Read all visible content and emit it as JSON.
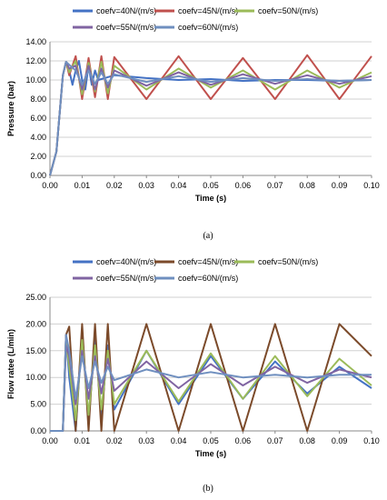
{
  "chart_data": [
    {
      "type": "line",
      "panel": "a",
      "caption": "(a)",
      "xlabel": "Time (s)",
      "ylabel": "Pressure (bar)",
      "xlim": [
        0,
        0.1
      ],
      "ylim": [
        0,
        14
      ],
      "x_ticks": [
        "0.00",
        "0.01",
        "0.02",
        "0.03",
        "0.04",
        "0.05",
        "0.06",
        "0.07",
        "0.08",
        "0.09",
        "0.10"
      ],
      "y_ticks": [
        "0.00",
        "2.00",
        "4.00",
        "6.00",
        "8.00",
        "10.00",
        "12.00",
        "14.00"
      ],
      "grid": "horizontal",
      "legend_position": "top",
      "series": [
        {
          "name": "coefv=40N/(m/s)",
          "color": "#4472C4",
          "x": [
            0,
            0.002,
            0.004,
            0.005,
            0.006,
            0.007,
            0.008,
            0.009,
            0.01,
            0.011,
            0.012,
            0.013,
            0.014,
            0.015,
            0.02,
            0.03,
            0.04,
            0.05,
            0.06,
            0.07,
            0.08,
            0.09,
            0.1
          ],
          "y": [
            0,
            2.5,
            10.5,
            11.9,
            11.0,
            9.5,
            11.0,
            12.0,
            10.0,
            9.0,
            11.5,
            9.5,
            11.0,
            10.0,
            10.5,
            10.2,
            10.0,
            10.1,
            9.9,
            10.0,
            10.0,
            9.9,
            10.0
          ]
        },
        {
          "name": "coefv=45N/(m/s)",
          "color": "#C0504D",
          "x": [
            0,
            0.002,
            0.004,
            0.005,
            0.006,
            0.008,
            0.01,
            0.012,
            0.014,
            0.016,
            0.018,
            0.02,
            0.03,
            0.04,
            0.05,
            0.06,
            0.07,
            0.08,
            0.09,
            0.1
          ],
          "y": [
            0,
            2.5,
            10.5,
            11.9,
            10.5,
            12.5,
            8.0,
            12.3,
            8.2,
            12.5,
            8.0,
            12.4,
            8.0,
            12.5,
            8.0,
            12.3,
            8.0,
            12.6,
            8.0,
            12.5
          ]
        },
        {
          "name": "coefv=50N/(m/s)",
          "color": "#9BBB59",
          "x": [
            0,
            0.002,
            0.004,
            0.005,
            0.006,
            0.008,
            0.01,
            0.012,
            0.014,
            0.016,
            0.018,
            0.02,
            0.03,
            0.04,
            0.05,
            0.06,
            0.07,
            0.08,
            0.09,
            0.1
          ],
          "y": [
            0,
            2.5,
            10.5,
            11.9,
            10.8,
            12.0,
            8.5,
            11.8,
            8.8,
            11.9,
            8.6,
            11.5,
            9.0,
            11.2,
            9.2,
            11.0,
            9.0,
            11.0,
            9.2,
            10.8
          ]
        },
        {
          "name": "coefv=55N/(m/s)",
          "color": "#8064A2",
          "x": [
            0,
            0.002,
            0.004,
            0.005,
            0.006,
            0.008,
            0.01,
            0.012,
            0.014,
            0.016,
            0.018,
            0.02,
            0.03,
            0.04,
            0.05,
            0.06,
            0.07,
            0.08,
            0.09,
            0.1
          ],
          "y": [
            0,
            2.5,
            10.5,
            11.9,
            11.2,
            11.5,
            9.0,
            11.5,
            9.0,
            11.2,
            9.2,
            11.0,
            9.4,
            10.8,
            9.5,
            10.6,
            9.6,
            10.5,
            9.6,
            10.4
          ]
        },
        {
          "name": "coefv=60N/(m/s)",
          "color": "#6F8FBF",
          "x": [
            0,
            0.002,
            0.004,
            0.005,
            0.006,
            0.008,
            0.01,
            0.012,
            0.014,
            0.016,
            0.018,
            0.02,
            0.03,
            0.04,
            0.05,
            0.06,
            0.07,
            0.08,
            0.09,
            0.1
          ],
          "y": [
            0,
            2.5,
            10.5,
            11.9,
            11.6,
            11.0,
            9.5,
            11.0,
            9.6,
            10.8,
            9.6,
            10.6,
            9.8,
            10.4,
            9.8,
            10.2,
            9.9,
            10.1,
            9.9,
            10.0
          ]
        }
      ]
    },
    {
      "type": "line",
      "panel": "b",
      "caption": "(b)",
      "xlabel": "Time (s)",
      "ylabel": "Flow ratee (L/min)",
      "xlim": [
        0,
        0.1
      ],
      "ylim": [
        0,
        25
      ],
      "x_ticks": [
        "0.00",
        "0.01",
        "0.02",
        "0.03",
        "0.04",
        "0.05",
        "0.06",
        "0.07",
        "0.08",
        "0.09",
        "0.10"
      ],
      "y_ticks": [
        "0.00",
        "5.00",
        "10.00",
        "15.00",
        "20.00",
        "25.00"
      ],
      "grid": "horizontal",
      "legend_position": "top",
      "series": [
        {
          "name": "coefv=40N/(m/s)",
          "color": "#4472C4",
          "x": [
            0,
            0.004,
            0.005,
            0.006,
            0.008,
            0.01,
            0.012,
            0.014,
            0.016,
            0.018,
            0.02,
            0.03,
            0.04,
            0.05,
            0.06,
            0.07,
            0.08,
            0.09,
            0.1
          ],
          "y": [
            0,
            0,
            18.0,
            10.0,
            0,
            18.5,
            2.0,
            17.0,
            3.0,
            16.0,
            4.0,
            15.0,
            5.0,
            14.0,
            6.0,
            13.0,
            7.0,
            12.0,
            8.0
          ]
        },
        {
          "name": "coefv=45N/(m/s)",
          "color": "#7B4A2A",
          "x": [
            0,
            0.004,
            0.005,
            0.006,
            0.008,
            0.01,
            0.012,
            0.014,
            0.016,
            0.018,
            0.02,
            0.03,
            0.04,
            0.05,
            0.06,
            0.07,
            0.08,
            0.09,
            0.1
          ],
          "y": [
            0,
            0,
            18.0,
            19.5,
            0,
            20.0,
            0,
            20.0,
            0,
            20.0,
            0,
            20.0,
            0,
            20.0,
            0,
            20.0,
            0,
            20.0,
            14.0
          ]
        },
        {
          "name": "coefv=50N/(m/s)",
          "color": "#9BBB59",
          "x": [
            0,
            0.004,
            0.005,
            0.006,
            0.008,
            0.01,
            0.012,
            0.014,
            0.016,
            0.018,
            0.02,
            0.03,
            0.04,
            0.05,
            0.06,
            0.07,
            0.08,
            0.09,
            0.1
          ],
          "y": [
            0,
            0,
            17.0,
            12.0,
            2.0,
            17.0,
            3.0,
            16.0,
            4.0,
            15.0,
            5.0,
            15.0,
            5.5,
            14.5,
            6.0,
            14.0,
            6.5,
            13.5,
            8.5
          ]
        },
        {
          "name": "coefv=55N/(m/s)",
          "color": "#8064A2",
          "x": [
            0,
            0.004,
            0.005,
            0.006,
            0.008,
            0.01,
            0.012,
            0.014,
            0.016,
            0.018,
            0.02,
            0.03,
            0.04,
            0.05,
            0.06,
            0.07,
            0.08,
            0.09,
            0.1
          ],
          "y": [
            0,
            0,
            16.0,
            14.0,
            5.0,
            15.0,
            6.0,
            14.0,
            7.0,
            13.5,
            7.5,
            13.0,
            8.0,
            12.5,
            8.5,
            12.0,
            9.0,
            11.5,
            10.0
          ]
        },
        {
          "name": "coefv=60N/(m/s)",
          "color": "#6F8FBF",
          "x": [
            0,
            0.004,
            0.005,
            0.006,
            0.008,
            0.01,
            0.012,
            0.014,
            0.016,
            0.018,
            0.02,
            0.03,
            0.04,
            0.05,
            0.06,
            0.07,
            0.08,
            0.09,
            0.1
          ],
          "y": [
            0,
            0,
            18.0,
            15.0,
            6.0,
            14.0,
            8.0,
            13.0,
            9.0,
            12.0,
            9.5,
            11.5,
            10.0,
            11.0,
            10.0,
            10.5,
            10.0,
            10.5,
            10.5
          ]
        }
      ]
    }
  ]
}
